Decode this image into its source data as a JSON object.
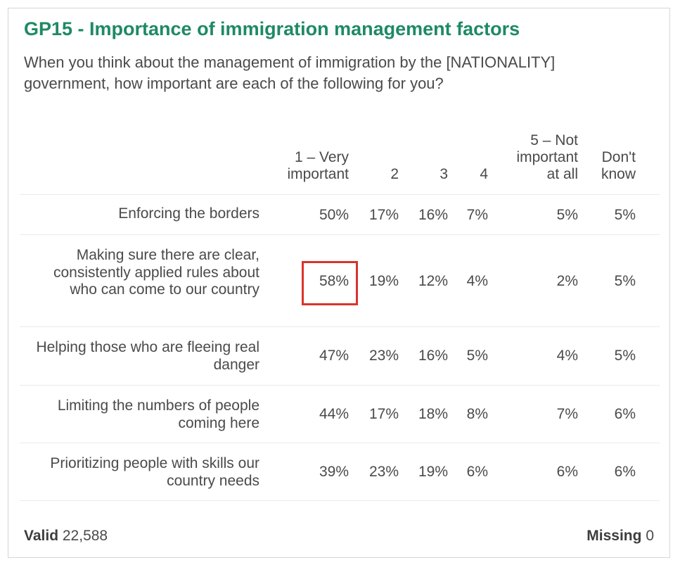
{
  "title": "GP15 - Importance of immigration management factors",
  "question": "When you think about the management of immigration by the [NATIONALITY] government, how important are each of the following for you?",
  "columns": [
    "1 – Very\nimportant",
    "2",
    "3",
    "4",
    "5 – Not\nimportant\nat all",
    "Don't\nknow"
  ],
  "rows": [
    {
      "label": "Enforcing the borders",
      "values": [
        "50%",
        "17%",
        "16%",
        "7%",
        "5%",
        "5%"
      ]
    },
    {
      "label": "Making sure there are clear, consistently applied rules about who can come to our country",
      "values": [
        "58%",
        "19%",
        "12%",
        "4%",
        "2%",
        "5%"
      ]
    },
    {
      "label": "Helping those who are fleeing real danger",
      "values": [
        "47%",
        "23%",
        "16%",
        "5%",
        "4%",
        "5%"
      ]
    },
    {
      "label": "Limiting the numbers of people coming here",
      "values": [
        "44%",
        "17%",
        "18%",
        "8%",
        "7%",
        "6%"
      ]
    },
    {
      "label": "Prioritizing people with skills our country needs",
      "values": [
        "39%",
        "23%",
        "19%",
        "6%",
        "6%",
        "6%"
      ]
    }
  ],
  "highlight_color": "#d9342b",
  "footer": {
    "valid_label": "Valid",
    "valid_value": "22,588",
    "missing_label": "Missing",
    "missing_value": "0"
  }
}
